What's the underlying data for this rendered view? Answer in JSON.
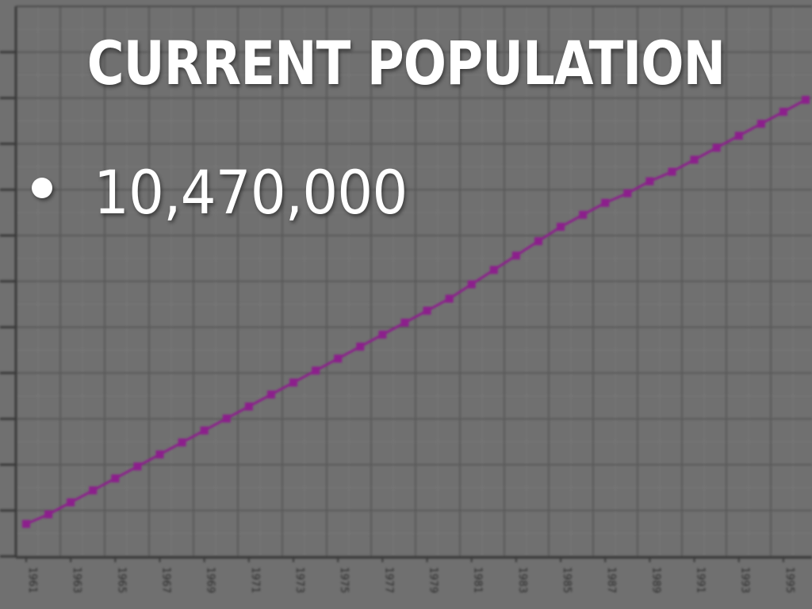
{
  "slide": {
    "title": "CURRENT POPULATION",
    "bullet": "10,470,000"
  },
  "colors": {
    "background": "#707070",
    "grid": "#5a5a5a",
    "line": "#8c1f8c",
    "text": "#ffffff"
  },
  "chart_data": {
    "type": "line",
    "title": "",
    "xlabel": "",
    "ylabel": "",
    "x": [
      1961,
      1962,
      1963,
      1964,
      1965,
      1966,
      1967,
      1968,
      1969,
      1970,
      1971,
      1972,
      1973,
      1974,
      1975,
      1976,
      1977,
      1978,
      1979,
      1980,
      1981,
      1982,
      1983,
      1984,
      1985,
      1986,
      1987,
      1988,
      1989,
      1990,
      1991,
      1992,
      1993,
      1994,
      1995,
      1996
    ],
    "x_tick_labels": [
      "1961",
      "1963",
      "1965",
      "1967",
      "1969",
      "1971",
      "1973",
      "1975",
      "1977",
      "1979",
      "1981",
      "1983",
      "1985",
      "1987",
      "1989",
      "1991",
      "1993",
      "1995"
    ],
    "values": [
      0.7,
      0.9,
      1.15,
      1.4,
      1.65,
      1.9,
      2.15,
      2.4,
      2.65,
      2.9,
      3.15,
      3.4,
      3.65,
      3.9,
      4.15,
      4.4,
      4.65,
      4.9,
      5.15,
      5.4,
      5.7,
      6.0,
      6.3,
      6.6,
      6.9,
      7.15,
      7.4,
      7.6,
      7.85,
      8.05,
      8.3,
      8.55,
      8.8,
      9.05,
      9.3,
      9.55
    ],
    "ylim": [
      0,
      11.5
    ],
    "grid": true,
    "y_tick_labels_visible": false
  }
}
